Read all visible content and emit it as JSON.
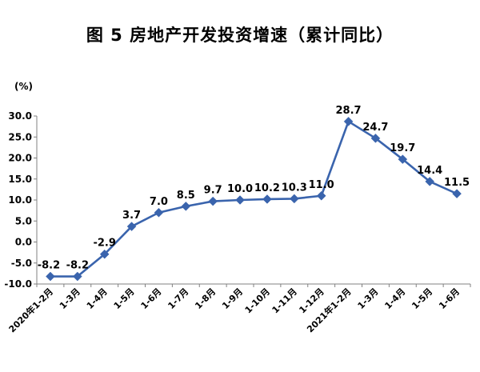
{
  "chart_data": {
    "type": "line",
    "title": "图 5    房地产开发投资增速（累计同比）",
    "unit_label": "(%)",
    "ylabel": "",
    "xlabel": "",
    "ylim": [
      -10,
      30
    ],
    "yticks": [
      "30.0",
      "25.0",
      "20.0",
      "15.0",
      "10.0",
      "5.0",
      "0.0",
      "-5.0",
      "-10.0"
    ],
    "grid": false,
    "categories": [
      "2020年1-2月",
      "1-3月",
      "1-4月",
      "1-5月",
      "1-6月",
      "1-7月",
      "1-8月",
      "1-9月",
      "1-10月",
      "1-11月",
      "1-12月",
      "2021年1-2月",
      "1-3月",
      "1-4月",
      "1-5月",
      "1-6月"
    ],
    "series": [
      {
        "values": [
          -8.2,
          -8.2,
          -2.9,
          3.7,
          7.0,
          8.5,
          9.7,
          10.0,
          10.2,
          10.3,
          11.0,
          28.7,
          24.7,
          19.7,
          14.4,
          11.5
        ],
        "labels": [
          "-8.2",
          "-8.2",
          "-2.9",
          "3.7",
          "7.0",
          "8.5",
          "9.7",
          "10.0",
          "10.2",
          "10.3",
          "11.0",
          "28.7",
          "24.7",
          "19.7",
          "14.4",
          "11.5"
        ]
      }
    ],
    "colors": {
      "line": "#3a64ad",
      "marker": "#3a64ad",
      "axis": "#808080",
      "text": "#000000"
    },
    "marker": "diamond"
  }
}
